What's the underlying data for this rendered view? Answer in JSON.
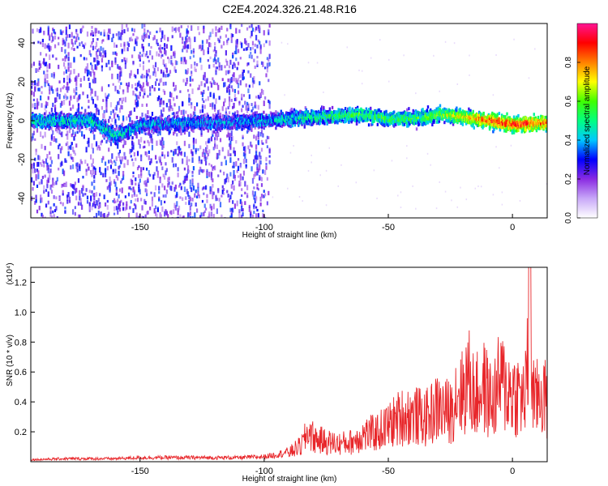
{
  "title": "C2E4.2024.326.21.48.R16",
  "colors": {
    "snr_line": "#e8262a",
    "spectrogram_scatter": "#9b5cf0",
    "axes": "#000000"
  },
  "colorbar": {
    "label": "Normalized spectral amplitude",
    "ticks": [
      "0.0",
      "0.2",
      "0.4",
      "0.6",
      "0.8"
    ],
    "tick_values": [
      0.0,
      0.2,
      0.4,
      0.6,
      0.8
    ],
    "range": [
      0,
      1
    ],
    "colormap": [
      "#ffffff",
      "#c8a8f8",
      "#8a2be2",
      "#0000ff",
      "#00c8ff",
      "#00ff80",
      "#40ff00",
      "#ffff00",
      "#ff8000",
      "#ff0000",
      "#ff1493"
    ]
  },
  "chart_data": [
    {
      "type": "heatmap",
      "title": "C2E4.2024.326.21.48.R16",
      "xlabel": "Height of straight line (km)",
      "ylabel": "Frequency (Hz)",
      "xlim": [
        -194,
        14
      ],
      "ylim": [
        -50,
        50
      ],
      "xticks": [
        -150,
        -100,
        -50,
        0
      ],
      "yticks": [
        -40,
        -20,
        0,
        20,
        40
      ],
      "signal_band": {
        "description_points_x": [
          -194,
          -170,
          -160,
          -150,
          -120,
          -100,
          -80,
          -60,
          -50,
          -40,
          -30,
          -20,
          -10,
          0,
          14
        ],
        "center_frequency": [
          0,
          0,
          -8,
          -2,
          -1,
          0,
          2,
          3,
          1,
          1,
          3,
          2,
          0,
          -2,
          -1
        ],
        "amplitude": [
          0.45,
          0.45,
          0.45,
          0.4,
          0.35,
          0.4,
          0.5,
          0.55,
          0.55,
          0.55,
          0.6,
          0.7,
          0.85,
          0.9,
          0.8
        ]
      }
    },
    {
      "type": "line",
      "xlabel": "Height of straight line (km)",
      "ylabel": "SNR (10 * v/v)",
      "y_multiplier": "(x10⁴)",
      "xlim": [
        -194,
        14
      ],
      "ylim": [
        0,
        1.3
      ],
      "xticks": [
        -150,
        -100,
        -50,
        0
      ],
      "yticks": [
        0.2,
        0.4,
        0.6,
        0.8,
        1.0,
        1.2
      ],
      "series": [
        {
          "x": [
            -194,
            -180,
            -160,
            -150,
            -140,
            -120,
            -110,
            -100,
            -95,
            -90,
            -85,
            -82,
            -80,
            -75,
            -70,
            -65,
            -60,
            -55,
            -50,
            -45,
            -40,
            -35,
            -30,
            -25,
            -22,
            -20,
            -18,
            -15,
            -12,
            -10,
            -8,
            -5,
            -2,
            0,
            2,
            5,
            7,
            9,
            11,
            13,
            14
          ],
          "y": [
            0.02,
            0.03,
            0.03,
            0.04,
            0.04,
            0.04,
            0.04,
            0.05,
            0.07,
            0.1,
            0.18,
            0.35,
            0.26,
            0.22,
            0.2,
            0.22,
            0.3,
            0.32,
            0.4,
            0.5,
            0.52,
            0.48,
            0.6,
            0.55,
            0.82,
            0.75,
            0.95,
            0.7,
            0.85,
            0.75,
            0.65,
            0.9,
            0.8,
            0.78,
            0.75,
            0.7,
            1.3,
            0.62,
            0.8,
            0.7,
            0.65
          ]
        }
      ]
    }
  ]
}
